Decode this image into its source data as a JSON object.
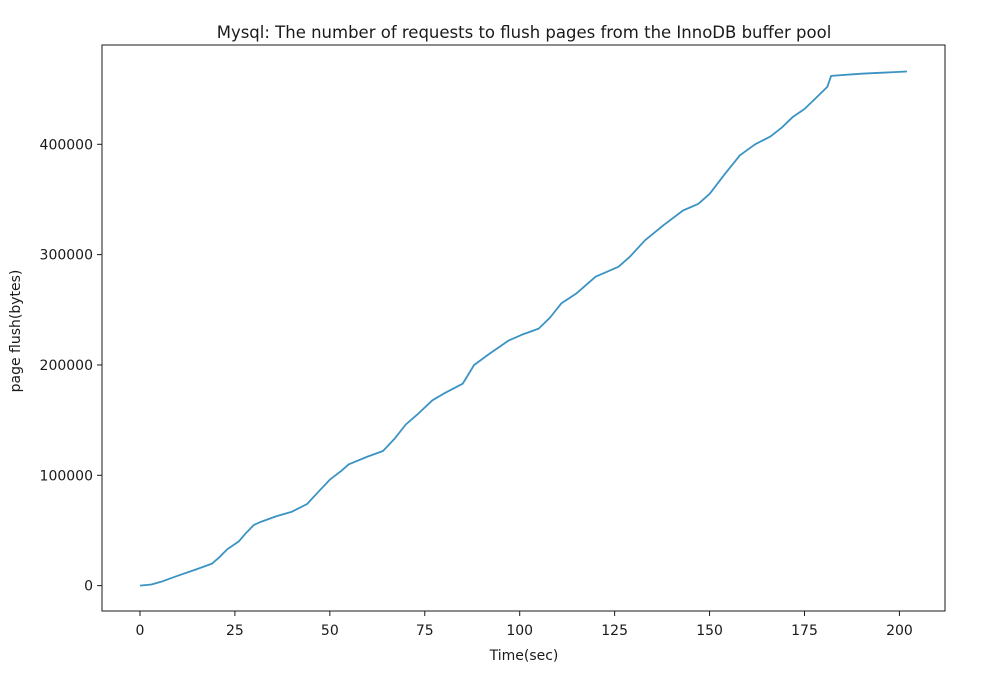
{
  "chart_data": {
    "type": "line",
    "title": "Mysql: The number of requests to flush pages from the InnoDB buffer pool",
    "xlabel": "Time(sec)",
    "ylabel": "page flush(bytes)",
    "xlim": [
      -10,
      212
    ],
    "ylim": [
      -23000,
      490000
    ],
    "xticks": [
      0,
      25,
      50,
      75,
      100,
      125,
      150,
      175,
      200
    ],
    "xtick_labels": [
      "0",
      "25",
      "50",
      "75",
      "100",
      "125",
      "150",
      "175",
      "200"
    ],
    "yticks": [
      0,
      100000,
      200000,
      300000,
      400000
    ],
    "ytick_labels": [
      "0",
      "100000",
      "200000",
      "300000",
      "400000"
    ],
    "grid": false,
    "legend": "none",
    "series": [
      {
        "color": "#3a93c3",
        "x": [
          0,
          3,
          6,
          10,
          15,
          19,
          21,
          23,
          26,
          28,
          30,
          32,
          36,
          40,
          44,
          47,
          50,
          53,
          55,
          60,
          64,
          67,
          70,
          73,
          77,
          80,
          85,
          88,
          92,
          97,
          101,
          105,
          108,
          111,
          115,
          120,
          126,
          129,
          133,
          138,
          143,
          147,
          150,
          154,
          158,
          162,
          166,
          169,
          172,
          175,
          178,
          181,
          182,
          190,
          202
        ],
        "y": [
          0,
          1000,
          4000,
          9000,
          15000,
          20000,
          26000,
          33000,
          40000,
          48000,
          55000,
          58000,
          63000,
          67000,
          74000,
          85000,
          96000,
          104000,
          110000,
          117000,
          122000,
          133000,
          146000,
          155000,
          168000,
          174000,
          183000,
          200000,
          210000,
          222000,
          228000,
          233000,
          243000,
          256000,
          265000,
          280000,
          289000,
          298000,
          313000,
          327000,
          340000,
          346000,
          355000,
          373000,
          390000,
          400000,
          407000,
          415000,
          425000,
          432000,
          442000,
          452000,
          462000,
          464000,
          466000
        ]
      }
    ]
  }
}
